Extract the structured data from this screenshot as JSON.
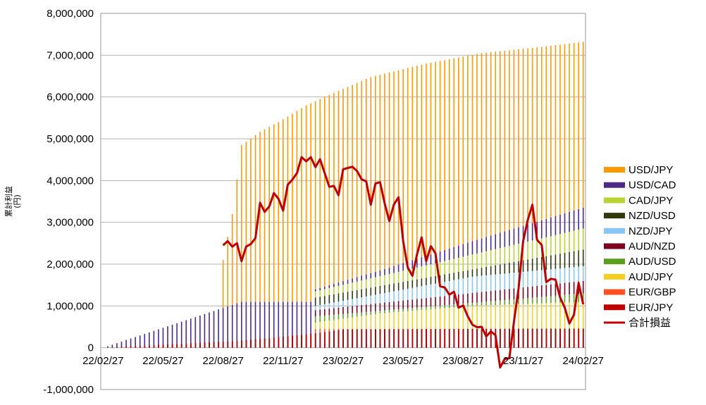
{
  "chart_data": {
    "type": "bar",
    "stacked": true,
    "ylabel": "累計利益\n(円)",
    "ylim": [
      -1000000,
      8000000
    ],
    "yticks": [
      "-1,000,000",
      "0",
      "1,000,000",
      "2,000,000",
      "3,000,000",
      "4,000,000",
      "5,000,000",
      "6,000,000",
      "7,000,000",
      "8,000,000"
    ],
    "xticks": [
      "22/02/27",
      "22/05/27",
      "22/08/27",
      "22/11/27",
      "23/02/27",
      "23/05/27",
      "23/08/27",
      "23/11/27",
      "24/02/27"
    ],
    "grid": "horizontal",
    "legend_position": "right",
    "n_weeks": 105,
    "legend": [
      {
        "name": "USD/JPY",
        "color": "#FF9900"
      },
      {
        "name": "USD/CAD",
        "color": "#4B2B86"
      },
      {
        "name": "CAD/JPY",
        "color": "#B8D430"
      },
      {
        "name": "NZD/USD",
        "color": "#2E3A0C"
      },
      {
        "name": "NZD/JPY",
        "color": "#87C6F5"
      },
      {
        "name": "AUD/NZD",
        "color": "#7B0023"
      },
      {
        "name": "AUD/USD",
        "color": "#5A9E1E"
      },
      {
        "name": "AUD/JPY",
        "color": "#F5CF1F"
      },
      {
        "name": "EUR/GBP",
        "color": "#FF4F1F"
      },
      {
        "name": "EUR/JPY",
        "color": "#C00000"
      },
      {
        "name": "合計損益",
        "color": "#C00000",
        "kind": "line"
      }
    ],
    "stack_order_bottom_to_top": [
      "EUR/JPY",
      "EUR/GBP",
      "AUD/JPY",
      "AUD/USD",
      "AUD/NZD",
      "NZD/JPY",
      "NZD/USD",
      "CAD/JPY",
      "USD/CAD",
      "USD/JPY"
    ],
    "series_cumulative_checkpoints": {
      "EUR/JPY": [
        [
          0,
          0
        ],
        [
          30,
          170000
        ],
        [
          45,
          330000
        ],
        [
          52,
          440000
        ],
        [
          104,
          460000
        ]
      ],
      "EUR/GBP": [
        [
          0,
          0
        ],
        [
          45,
          0
        ],
        [
          46,
          450000
        ],
        [
          104,
          460000
        ]
      ],
      "AUD/JPY": [
        [
          0,
          0
        ],
        [
          45,
          0
        ],
        [
          46,
          600000
        ],
        [
          60,
          820000
        ],
        [
          80,
          1000000
        ],
        [
          104,
          1100000
        ]
      ],
      "AUD/USD": [
        [
          0,
          0
        ],
        [
          45,
          0
        ],
        [
          46,
          750000
        ],
        [
          104,
          1300000
        ]
      ],
      "AUD/NZD": [
        [
          0,
          0
        ],
        [
          45,
          0
        ],
        [
          46,
          900000
        ],
        [
          104,
          1600000
        ]
      ],
      "NZD/JPY": [
        [
          0,
          0
        ],
        [
          45,
          0
        ],
        [
          46,
          1000000
        ],
        [
          80,
          1700000
        ],
        [
          104,
          1950000
        ]
      ],
      "NZD/USD": [
        [
          0,
          0
        ],
        [
          45,
          0
        ],
        [
          46,
          1200000
        ],
        [
          104,
          2350000
        ]
      ],
      "CAD/JPY": [
        [
          0,
          0
        ],
        [
          45,
          0
        ],
        [
          46,
          1350000
        ],
        [
          104,
          2850000
        ]
      ],
      "USD/CAD": [
        [
          0,
          0
        ],
        [
          30,
          1100000
        ],
        [
          45,
          1100000
        ],
        [
          46,
          1400000
        ],
        [
          60,
          1850000
        ],
        [
          80,
          2550000
        ],
        [
          104,
          3350000
        ]
      ],
      "USD/JPY": [
        [
          0,
          0
        ],
        [
          4,
          60000
        ],
        [
          12,
          250000
        ],
        [
          25,
          580000
        ],
        [
          26,
          2100000
        ],
        [
          28,
          3200000
        ],
        [
          30,
          4850000
        ],
        [
          34,
          5170000
        ],
        [
          38,
          5400000
        ],
        [
          44,
          5800000
        ],
        [
          49,
          6050000
        ],
        [
          58,
          6480000
        ],
        [
          70,
          6800000
        ],
        [
          82,
          7050000
        ],
        [
          95,
          7200000
        ],
        [
          104,
          7320000
        ]
      ]
    },
    "total_pl_line": {
      "name": "合計損益",
      "color": "#C00000",
      "points": [
        [
          26,
          2450000
        ],
        [
          27,
          2550000
        ],
        [
          28,
          2420000
        ],
        [
          29,
          2500000
        ],
        [
          30,
          2070000
        ],
        [
          31,
          2420000
        ],
        [
          32,
          2480000
        ],
        [
          33,
          2620000
        ],
        [
          34,
          3470000
        ],
        [
          35,
          3250000
        ],
        [
          36,
          3380000
        ],
        [
          37,
          3700000
        ],
        [
          38,
          3560000
        ],
        [
          39,
          3280000
        ],
        [
          40,
          3900000
        ],
        [
          41,
          4020000
        ],
        [
          42,
          4180000
        ],
        [
          43,
          4560000
        ],
        [
          44,
          4460000
        ],
        [
          45,
          4560000
        ],
        [
          46,
          4320000
        ],
        [
          47,
          4510000
        ],
        [
          48,
          4180000
        ],
        [
          49,
          3850000
        ],
        [
          50,
          3870000
        ],
        [
          51,
          3650000
        ],
        [
          52,
          4270000
        ],
        [
          53,
          4300000
        ],
        [
          54,
          4330000
        ],
        [
          55,
          4230000
        ],
        [
          56,
          4030000
        ],
        [
          57,
          3980000
        ],
        [
          58,
          3420000
        ],
        [
          59,
          3930000
        ],
        [
          60,
          3960000
        ],
        [
          61,
          3450000
        ],
        [
          62,
          3030000
        ],
        [
          63,
          3430000
        ],
        [
          64,
          3600000
        ],
        [
          65,
          2550000
        ],
        [
          66,
          1920000
        ],
        [
          67,
          1720000
        ],
        [
          68,
          2230000
        ],
        [
          69,
          2640000
        ],
        [
          70,
          2070000
        ],
        [
          71,
          2430000
        ],
        [
          72,
          2260000
        ],
        [
          73,
          1470000
        ],
        [
          74,
          1440000
        ],
        [
          75,
          1270000
        ],
        [
          76,
          1340000
        ],
        [
          77,
          960000
        ],
        [
          78,
          1010000
        ],
        [
          79,
          750000
        ],
        [
          80,
          550000
        ],
        [
          81,
          490000
        ],
        [
          82,
          500000
        ],
        [
          83,
          270000
        ],
        [
          84,
          390000
        ],
        [
          85,
          300000
        ],
        [
          86,
          -470000
        ],
        [
          87,
          -270000
        ],
        [
          88,
          -250000
        ],
        [
          89,
          620000
        ],
        [
          90,
          1420000
        ],
        [
          91,
          2550000
        ],
        [
          92,
          3060000
        ],
        [
          93,
          3420000
        ],
        [
          94,
          2580000
        ],
        [
          95,
          2460000
        ],
        [
          96,
          1570000
        ],
        [
          97,
          1650000
        ],
        [
          98,
          1630000
        ],
        [
          99,
          1200000
        ],
        [
          100,
          960000
        ],
        [
          101,
          580000
        ],
        [
          102,
          790000
        ],
        [
          103,
          1550000
        ],
        [
          104,
          1040000
        ]
      ]
    }
  }
}
